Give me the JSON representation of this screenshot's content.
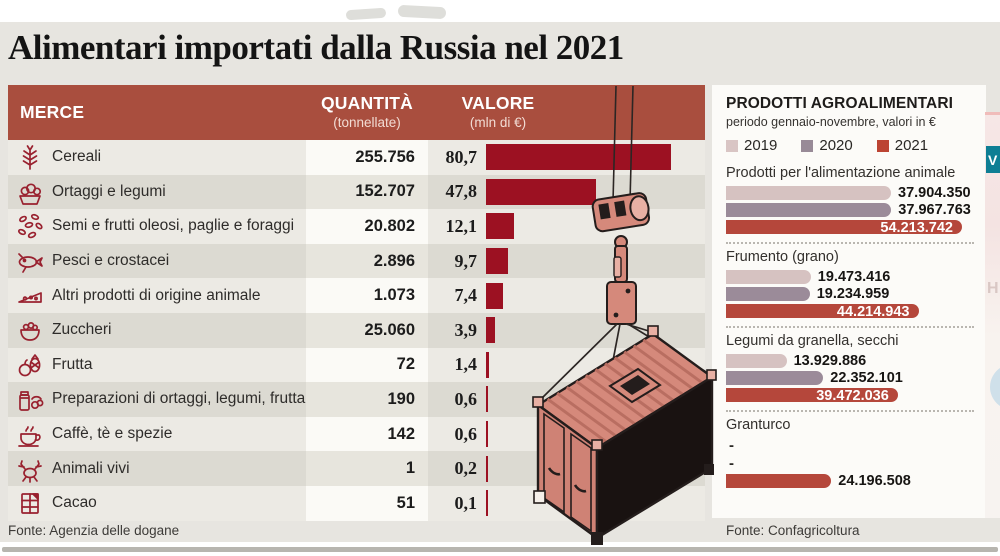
{
  "title": "Alimentari importati dalla Russia nel 2021",
  "table": {
    "headers": {
      "merce": "MERCE",
      "quantita": "QUANTITÀ",
      "quantita_sub": "(tonnellate)",
      "valore": "VALORE",
      "valore_sub": "(mln di €)"
    },
    "rows": [
      {
        "icon": "wheat-icon",
        "label": "Cereali",
        "quantita": "255.756",
        "valore": "80,7",
        "valore_num": 80.7
      },
      {
        "icon": "vegetables-icon",
        "label": "Ortaggi e legumi",
        "quantita": "152.707",
        "valore": "47,8",
        "valore_num": 47.8
      },
      {
        "icon": "seeds-icon",
        "label": "Semi e frutti oleosi, paglie e foraggi",
        "quantita": "20.802",
        "valore": "12,1",
        "valore_num": 12.1
      },
      {
        "icon": "fish-icon",
        "label": "Pesci e crostacei",
        "quantita": "2.896",
        "valore": "9,7",
        "valore_num": 9.7
      },
      {
        "icon": "cheese-icon",
        "label": "Altri prodotti di origine animale",
        "quantita": "1.073",
        "valore": "7,4",
        "valore_num": 7.4
      },
      {
        "icon": "sugar-icon",
        "label": "Zuccheri",
        "quantita": "25.060",
        "valore": "3,9",
        "valore_num": 3.9
      },
      {
        "icon": "fruit-icon",
        "label": "Frutta",
        "quantita": "72",
        "valore": "1,4",
        "valore_num": 1.4
      },
      {
        "icon": "preserves-icon",
        "label": "Preparazioni di ortaggi, legumi, frutta",
        "quantita": "190",
        "valore": "0,6",
        "valore_num": 0.6
      },
      {
        "icon": "coffee-icon",
        "label": "Caffè, tè e spezie",
        "quantita": "142",
        "valore": "0,6",
        "valore_num": 0.6
      },
      {
        "icon": "crustacean-icon",
        "label": "Animali vivi",
        "quantita": "1",
        "valore": "0,2",
        "valore_num": 0.2
      },
      {
        "icon": "chocolate-icon",
        "label": "Cacao",
        "quantita": "51",
        "valore": "0,1",
        "valore_num": 0.1
      }
    ],
    "max_value": 80.7,
    "source": "Fonte: Agenzia delle dogane"
  },
  "panel": {
    "title": "PRODOTTI AGROALIMENTARI",
    "subtitle": "periodo gennaio-novembre, valori in €",
    "legend": [
      {
        "label": "2019",
        "color": "#d9c5c4"
      },
      {
        "label": "2020",
        "color": "#988a97"
      },
      {
        "label": "2021",
        "color": "#bc4433"
      }
    ],
    "max_num": 54213742,
    "groups": [
      {
        "label": "Prodotti per l'alimentazione animale",
        "bars": [
          {
            "year": "2019",
            "value": "37.904.350",
            "num": 37904350,
            "inside": false
          },
          {
            "year": "2020",
            "value": "37.967.763",
            "num": 37967763,
            "inside": false
          },
          {
            "year": "2021",
            "value": "54.213.742",
            "num": 54213742,
            "inside": true
          }
        ]
      },
      {
        "label": "Frumento (grano)",
        "bars": [
          {
            "year": "2019",
            "value": "19.473.416",
            "num": 19473416,
            "inside": false
          },
          {
            "year": "2020",
            "value": "19.234.959",
            "num": 19234959,
            "inside": false
          },
          {
            "year": "2021",
            "value": "44.214.943",
            "num": 44214943,
            "inside": true
          }
        ]
      },
      {
        "label": "Legumi da granella, secchi",
        "bars": [
          {
            "year": "2019",
            "value": "13.929.886",
            "num": 13929886,
            "inside": false
          },
          {
            "year": "2020",
            "value": "22.352.101",
            "num": 22352101,
            "inside": false
          },
          {
            "year": "2021",
            "value": "39.472.036",
            "num": 39472036,
            "inside": true
          }
        ]
      },
      {
        "label": "Granturco",
        "bars": [
          {
            "year": "2019",
            "value": "-",
            "num": null,
            "inside": false
          },
          {
            "year": "2020",
            "value": "-",
            "num": null,
            "inside": false
          },
          {
            "year": "2021",
            "value": "24.196.508",
            "num": 24196508,
            "inside": false
          }
        ]
      }
    ],
    "source": "Fonte: Confagricoltura",
    "video_badge": "V"
  },
  "colors": {
    "background": "#e7e5e0",
    "table_header": "#a94e3e",
    "value_bar": "#9c1122",
    "bar_2019": "#d6c2c1",
    "bar_2020": "#9b8b99",
    "bar_2021": "#b5473b",
    "video_badge": "#0e7e94",
    "icon_stroke": "#99212f"
  },
  "chart_data": [
    {
      "type": "table",
      "title": "Alimentari importati dalla Russia nel 2021",
      "columns": [
        "MERCE",
        "QUANTITÀ (tonnellate)",
        "VALORE (mln di €)"
      ],
      "categories": [
        "Cereali",
        "Ortaggi e legumi",
        "Semi e frutti oleosi, paglie e foraggi",
        "Pesci e crostacei",
        "Altri prodotti di origine animale",
        "Zuccheri",
        "Frutta",
        "Preparazioni di ortaggi, legumi, frutta",
        "Caffè, tè e spezie",
        "Animali vivi",
        "Cacao"
      ],
      "series": [
        {
          "name": "Quantità (tonnellate)",
          "values": [
            255756,
            152707,
            20802,
            2896,
            1073,
            25060,
            72,
            190,
            142,
            1,
            51
          ]
        },
        {
          "name": "Valore (mln di €)",
          "values": [
            80.7,
            47.8,
            12.1,
            9.7,
            7.4,
            3.9,
            1.4,
            0.6,
            0.6,
            0.2,
            0.1
          ]
        }
      ],
      "bar_series": "Valore (mln di €)",
      "xlim": [
        0,
        80.7
      ],
      "source": "Fonte: Agenzia delle dogane"
    },
    {
      "type": "bar",
      "title": "PRODOTTI AGROALIMENTARI",
      "subtitle": "periodo gennaio-novembre, valori in €",
      "categories": [
        "Prodotti per l'alimentazione animale",
        "Frumento (grano)",
        "Legumi da granella, secchi",
        "Granturco"
      ],
      "series": [
        {
          "name": "2019",
          "values": [
            37904350,
            19473416,
            13929886,
            null
          ]
        },
        {
          "name": "2020",
          "values": [
            37967763,
            19234959,
            22352101,
            null
          ]
        },
        {
          "name": "2021",
          "values": [
            54213742,
            44214943,
            39472036,
            24196508
          ]
        }
      ],
      "legend_position": "top",
      "xlim": [
        0,
        54213742
      ],
      "source": "Fonte: Confagricoltura"
    }
  ]
}
